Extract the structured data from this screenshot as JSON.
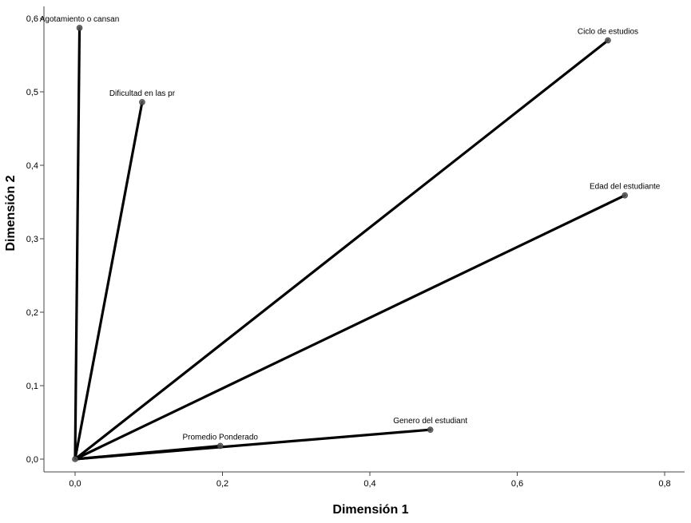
{
  "chart_data": {
    "type": "scatter",
    "title": "",
    "xlabel": "Dimensión 1",
    "ylabel": "Dimensión 2",
    "xlim": [
      -0.04,
      0.82
    ],
    "ylim": [
      -0.017,
      0.6
    ],
    "x_ticks": [
      {
        "value": 0.0,
        "label": "0,0"
      },
      {
        "value": 0.2,
        "label": "0,2"
      },
      {
        "value": 0.4,
        "label": "0,4"
      },
      {
        "value": 0.6,
        "label": "0,6"
      },
      {
        "value": 0.8,
        "label": "0,8"
      }
    ],
    "y_ticks": [
      {
        "value": 0.0,
        "label": "0,0"
      },
      {
        "value": 0.1,
        "label": "0,1"
      },
      {
        "value": 0.2,
        "label": "0,2"
      },
      {
        "value": 0.3,
        "label": "0,3"
      },
      {
        "value": 0.4,
        "label": "0,4"
      },
      {
        "value": 0.5,
        "label": "0,5"
      },
      {
        "value": 0.6,
        "label": "0,6"
      }
    ],
    "origin": [
      0,
      0
    ],
    "grid": false,
    "points": [
      {
        "label": "Agotamiento o cansan",
        "x": 0.006,
        "y": 0.587
      },
      {
        "label": "Dificultad en las pr",
        "x": 0.091,
        "y": 0.486
      },
      {
        "label": "Ciclo de estudios",
        "x": 0.723,
        "y": 0.57
      },
      {
        "label": "Edad del estudiante",
        "x": 0.746,
        "y": 0.359
      },
      {
        "label": "Genero del estudiant",
        "x": 0.482,
        "y": 0.04
      },
      {
        "label": "Promedio Ponderado",
        "x": 0.197,
        "y": 0.018
      }
    ]
  }
}
